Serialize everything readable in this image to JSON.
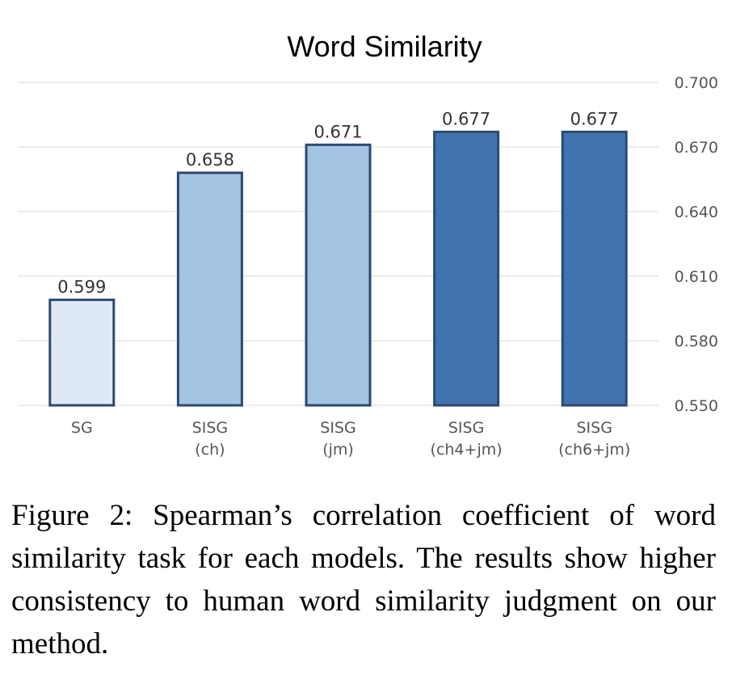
{
  "chart_data": {
    "type": "bar",
    "title": "Word Similarity",
    "categories": [
      [
        "SG"
      ],
      [
        "SISG",
        "(ch)"
      ],
      [
        "SISG",
        "(jm)"
      ],
      [
        "SISG",
        "(ch4+jm)"
      ],
      [
        "SISG",
        "(ch6+jm)"
      ]
    ],
    "values": [
      0.599,
      0.658,
      0.671,
      0.677,
      0.677
    ],
    "value_labels": [
      "0.599",
      "0.658",
      "0.671",
      "0.677",
      "0.677"
    ],
    "yticks": [
      "0.550",
      "0.580",
      "0.610",
      "0.640",
      "0.670",
      "0.700"
    ],
    "ylim": [
      0.55,
      0.7
    ],
    "y_axis_side": "right",
    "grid": true,
    "bar_fill_colors": [
      "#dfe9f5",
      "#a5c3e2",
      "#a5c3e2",
      "#4174af",
      "#4174af"
    ],
    "bar_edge_color": "#2c4a70",
    "gridline_color": "#d9d9d9"
  },
  "caption": "Figure 2: Spearman’s correlation coefficient of word similarity task for each models. The results show higher consistency to human word similarity judgment on our method."
}
